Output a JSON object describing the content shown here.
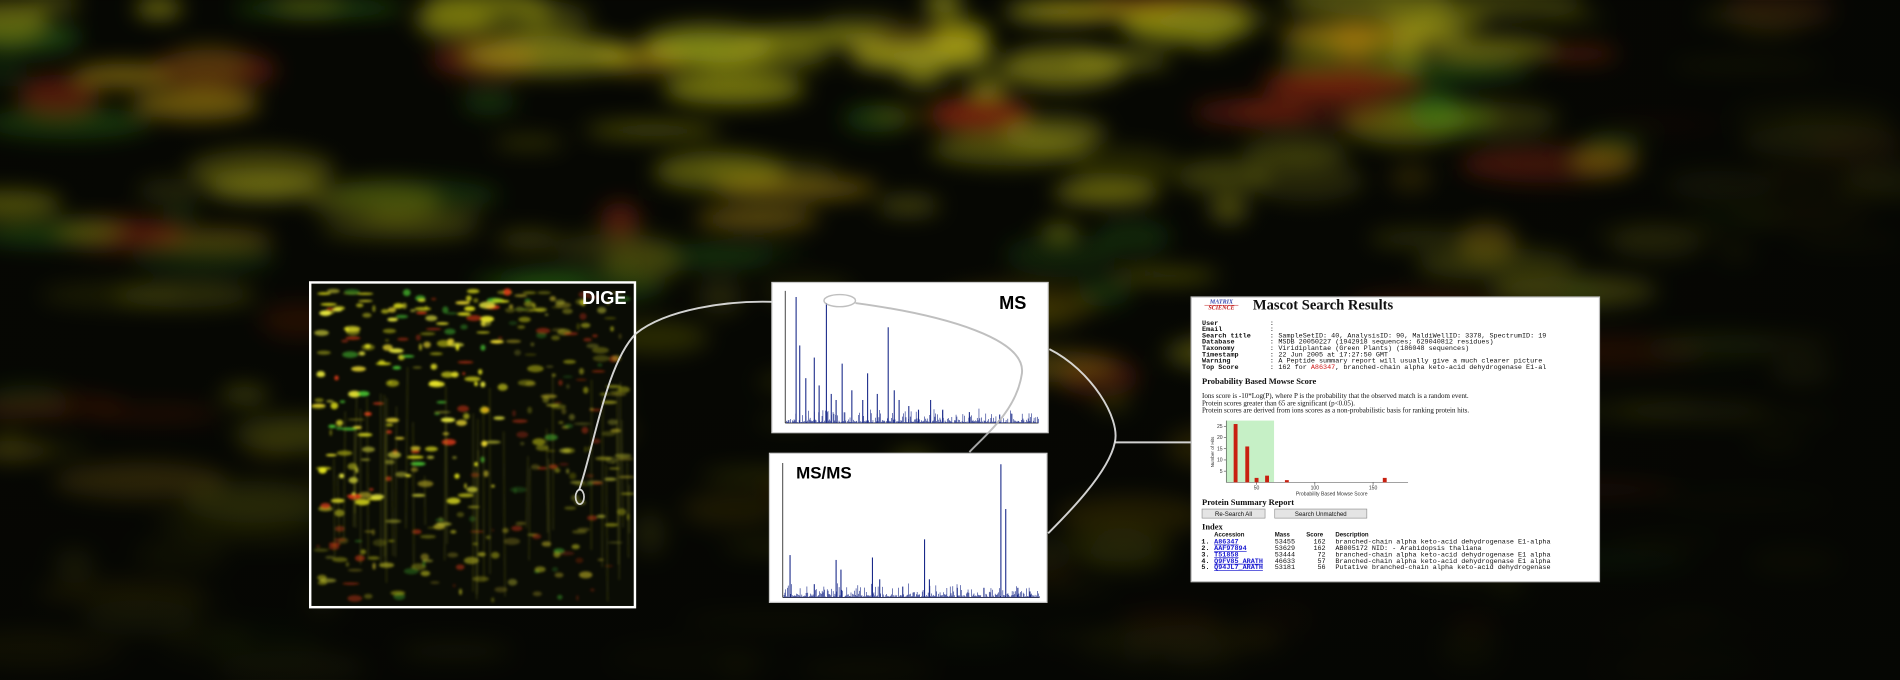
{
  "panels": {
    "dige": "DIGE",
    "ms": "MS",
    "msms": "MS/MS"
  },
  "mascot": {
    "logo": [
      "MATRIX",
      "SCIENCE"
    ],
    "title": "Mascot Search Results",
    "separator": ":",
    "fields": [
      {
        "label": "User"
      },
      {
        "label": "Email"
      },
      {
        "label": "Search title",
        "value": "SampleSetID: 40, AnalysisID: 90, MaldiWellID: 3378, SpectrumID: 19"
      },
      {
        "label": "Database",
        "value": "MSDB 20050227 (1942918 sequences; 629040812 residues)"
      },
      {
        "label": "Taxonomy",
        "value": "Viridiplantae (Green Plants) (186048 sequences)"
      },
      {
        "label": "Timestamp",
        "value": "22 Jun 2005 at 17:27:50 GMT"
      },
      {
        "label": "Warning",
        "value": "A Peptide summary report will usually give a much clearer picture"
      },
      {
        "label": "Top Score",
        "value": "162 for ",
        "link": "A86347",
        "rest": ", branched-chain alpha keto-acid dehydrogenase E1-al"
      }
    ],
    "score_heading": "Probability Based Mowse Score",
    "score_notes": [
      "Ions score is -10*Log(P), where P is the probability that the observed match is a random event.",
      "Protein scores greater than 65 are significant (p<0.05).",
      "Protein scores are derived from ions scores as a non-probabilistic basis for ranking protein hits."
    ],
    "histogram": {
      "x_label": "Probability Based Mowse Score",
      "y_label": "Number of Hits",
      "xlim": [
        24,
        180
      ],
      "ylim": [
        0,
        27
      ],
      "xticks": [
        50,
        100,
        150
      ],
      "yticks": [
        5,
        10,
        15,
        20,
        25
      ],
      "threshold": 65,
      "x": [
        32,
        42,
        50,
        59,
        76,
        160
      ],
      "values": [
        26,
        16,
        2,
        3,
        1,
        2
      ]
    },
    "summary_heading": "Protein Summary Report",
    "buttons": [
      "Re-Search All",
      "Search Unmatched"
    ],
    "index_heading": "Index",
    "table": {
      "columns": [
        "Accession",
        "Mass",
        "Score",
        "Description"
      ],
      "rows": [
        [
          "1.",
          "A86347",
          "53455",
          "162",
          "branched-chain alpha keto-acid dehydrogenase E1-alpha"
        ],
        [
          "2.",
          "AAF97894",
          "53629",
          "162",
          "AB005172 NID: - Arabidopsis thaliana"
        ],
        [
          "3.",
          "T51858",
          "53444",
          "72",
          "branched-chain alpha keto-acid dehydrogenase E1 alpha"
        ],
        [
          "4.",
          "Q9FV85_ARATH",
          "46633",
          "57",
          "Branched-chain alpha keto-acid dehydrogenase E1 alpha"
        ],
        [
          "5.",
          "Q94JL7_ARATH",
          "53181",
          "56",
          "Putative branched-chain alpha keto-acid dehydrogenase"
        ]
      ]
    }
  }
}
